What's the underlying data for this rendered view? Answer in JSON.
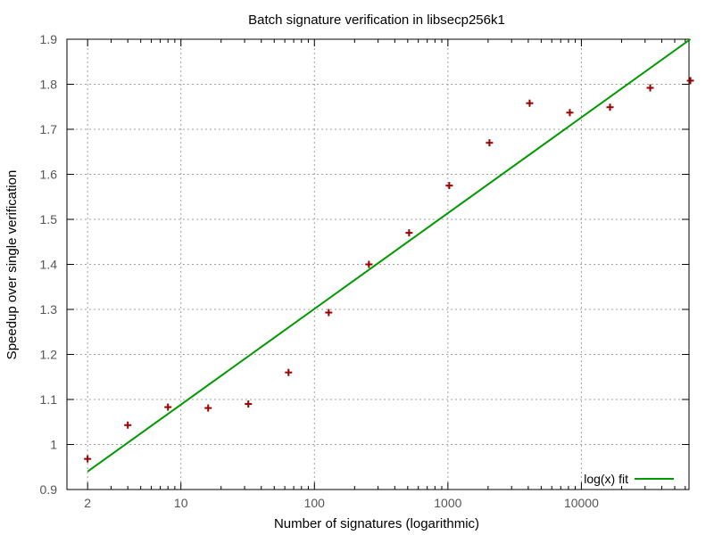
{
  "chart_data": {
    "type": "scatter",
    "title": "Batch signature verification in libsecp256k1",
    "xlabel": "Number of signatures (logarithmic)",
    "ylabel": "Speedup over single verification",
    "x_scale": "log",
    "xlim": [
      1.4,
      64000
    ],
    "ylim": [
      0.9,
      1.9
    ],
    "grid": true,
    "x_ticks": [
      2,
      10,
      100,
      1000,
      10000
    ],
    "x_tick_labels": [
      "2",
      "10",
      "100",
      "1000",
      "10000"
    ],
    "y_ticks": [
      0.9,
      1.0,
      1.1,
      1.2,
      1.3,
      1.4,
      1.5,
      1.6,
      1.7,
      1.8,
      1.9
    ],
    "y_tick_labels": [
      "0.9",
      "1",
      "1.1",
      "1.2",
      "1.3",
      "1.4",
      "1.5",
      "1.6",
      "1.7",
      "1.8",
      "1.9"
    ],
    "series": [
      {
        "kind": "points",
        "marker": "plus",
        "color": "#990000",
        "x": [
          2,
          4,
          8,
          16,
          32,
          64,
          128,
          256,
          512,
          1024,
          2048,
          4096,
          8192,
          16384,
          32768,
          65536
        ],
        "y": [
          0.968,
          1.043,
          1.083,
          1.081,
          1.09,
          1.16,
          1.293,
          1.4,
          1.47,
          1.575,
          1.67,
          1.758,
          1.737,
          1.749,
          1.792,
          1.808
        ]
      },
      {
        "kind": "fit",
        "name": "log(x) fit",
        "color": "#009900",
        "x": [
          2,
          65536
        ],
        "y": [
          0.94,
          1.9
        ]
      }
    ],
    "legend": {
      "position": "bottom-right",
      "label": "log(x) fit"
    }
  }
}
